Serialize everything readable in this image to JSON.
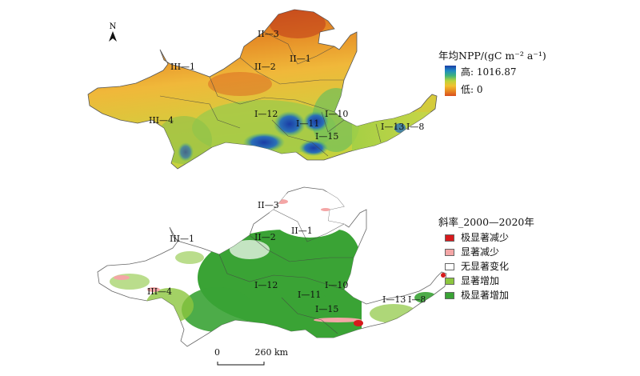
{
  "legend_npp": {
    "title": "年均NPP/(gC m⁻² a⁻¹)",
    "high_label": "高: 1016.87",
    "low_label": "低: 0",
    "ramp_colors": [
      "#1a3da6",
      "#1f8ac4",
      "#3fb37a",
      "#b9d33b",
      "#f2c12e",
      "#e88a22",
      "#d94d1f"
    ]
  },
  "legend_slope": {
    "title": "斜率_2000—2020年",
    "items": [
      {
        "label": "极显著减少",
        "color": "#d7191c"
      },
      {
        "label": "显著减少",
        "color": "#f4a6a6"
      },
      {
        "label": "无显著变化",
        "color": "#ffffff"
      },
      {
        "label": "显著增加",
        "color": "#8cc63f"
      },
      {
        "label": "极显著增加",
        "color": "#3aa335"
      }
    ]
  },
  "north_arrow": {
    "label": "N"
  },
  "scale_bar": {
    "zero": "0",
    "distance": "260 km"
  },
  "zone_labels": [
    "II—3",
    "II—2",
    "II—1",
    "III—1",
    "III—4",
    "I—12",
    "I—11",
    "I—10",
    "I—15",
    "I—13",
    "I—8"
  ]
}
